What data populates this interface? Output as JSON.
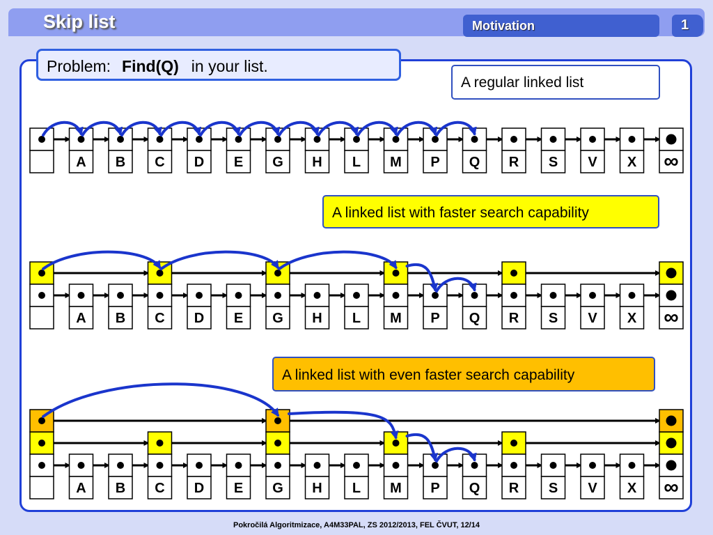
{
  "header": {
    "title": "Skip list",
    "section": "Motivation",
    "page_number": "1"
  },
  "problem": {
    "prefix": "Problem:",
    "call": "Find(Q)",
    "suffix": "in your list."
  },
  "captions": {
    "regular": "A regular linked list",
    "faster": "A linked list with faster search capability",
    "even_faster": "A linked list with even faster search capability"
  },
  "list": {
    "keys": [
      "A",
      "B",
      "C",
      "D",
      "E",
      "G",
      "H",
      "L",
      "M",
      "P",
      "Q",
      "R",
      "S",
      "V",
      "X"
    ],
    "head_label": "",
    "tail_label": "∞"
  },
  "diagrams": [
    {
      "name": "regular",
      "levels": [],
      "search_path": [
        [
          0,
          "base"
        ],
        [
          1,
          "base"
        ],
        [
          2,
          "base"
        ],
        [
          3,
          "base"
        ],
        [
          4,
          "base"
        ],
        [
          5,
          "base"
        ],
        [
          6,
          "base"
        ],
        [
          7,
          "base"
        ],
        [
          8,
          "base"
        ],
        [
          9,
          "base"
        ],
        [
          10,
          "base"
        ],
        [
          11,
          "base"
        ]
      ]
    },
    {
      "name": "faster",
      "levels": [
        {
          "nodes": [
            3,
            6,
            9,
            12
          ],
          "color": "#ffff00"
        }
      ],
      "search_path": [
        [
          0,
          0
        ],
        [
          3,
          0
        ],
        [
          6,
          0
        ],
        [
          9,
          0
        ],
        [
          10,
          "base"
        ],
        [
          11,
          "base"
        ]
      ]
    },
    {
      "name": "even_faster",
      "levels": [
        {
          "nodes": [
            3,
            6,
            9,
            12
          ],
          "color": "#ffff00"
        },
        {
          "nodes": [
            6
          ],
          "color": "#ffbf00"
        }
      ],
      "search_path": [
        [
          0,
          1
        ],
        [
          6,
          1
        ],
        [
          9,
          0
        ],
        [
          10,
          "base"
        ],
        [
          11,
          "base"
        ]
      ]
    }
  ],
  "colors": {
    "arrow": "#1a35cc",
    "level1": "#ffff00",
    "level2": "#ffbf00",
    "accent": "#2040d8"
  },
  "footer": "Pokročilá Algoritmizace, A4M33PAL, ZS 2012/2013, FEL ČVUT,  12/14"
}
